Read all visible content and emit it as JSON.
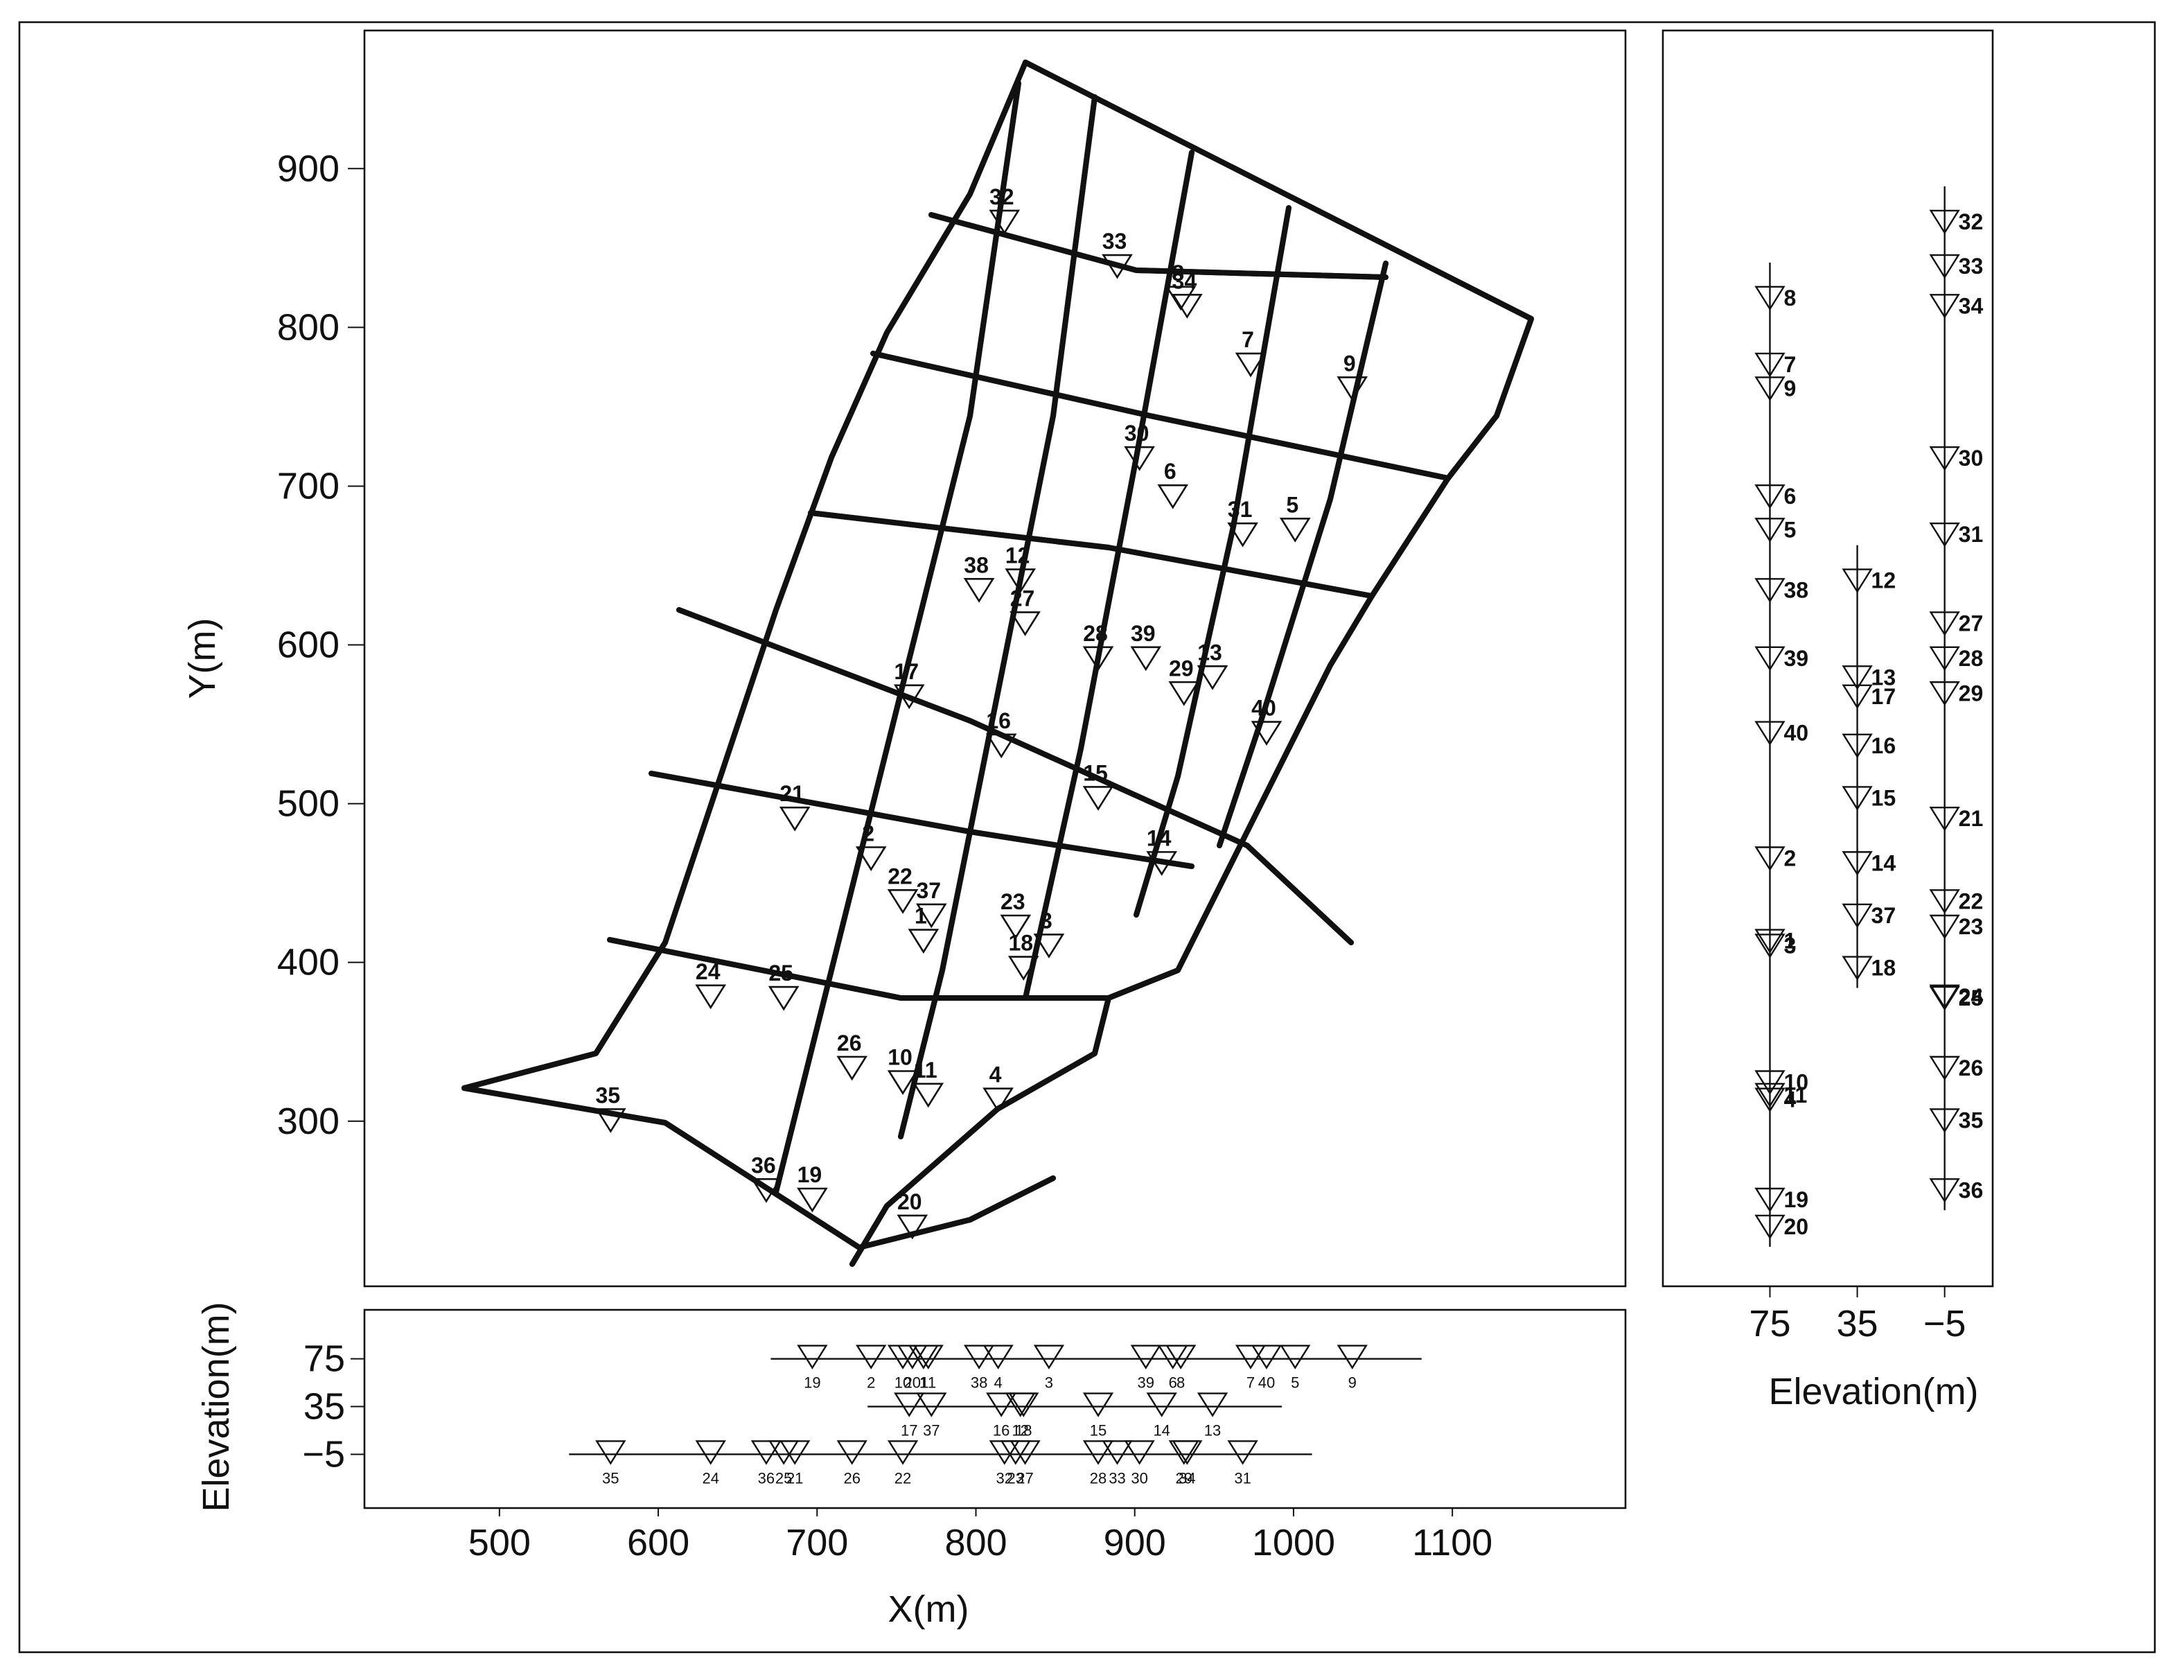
{
  "chart_data": {
    "type": "scatter",
    "xlabel": "X(m)",
    "ylabel": "Y(m)",
    "elevation_label": "Elevation(m)",
    "xlim": [
      415,
      1209
    ],
    "ylim": [
      196,
      987
    ],
    "xticks": [
      500,
      600,
      700,
      800,
      900,
      1000,
      1100
    ],
    "yticks": [
      300,
      400,
      500,
      600,
      700,
      800,
      900
    ],
    "elevation_bottom_lim": [
      -50,
      116
    ],
    "elevation_right_lim": [
      124,
      -27
    ],
    "elevation_ticks": [
      75,
      35,
      {
        "value": -5,
        "label": "−5"
      }
    ],
    "color": "#111111",
    "points": [
      {
        "label": "1",
        "x": 767,
        "y": 414,
        "elevation": 75
      },
      {
        "label": "2",
        "x": 734,
        "y": 466,
        "elevation": 75
      },
      {
        "label": "3",
        "x": 846,
        "y": 411,
        "elevation": 75
      },
      {
        "label": "4",
        "x": 814,
        "y": 314,
        "elevation": 75
      },
      {
        "label": "5",
        "x": 1001,
        "y": 673,
        "elevation": 75
      },
      {
        "label": "6",
        "x": 924,
        "y": 694,
        "elevation": 75
      },
      {
        "label": "7",
        "x": 973,
        "y": 777,
        "elevation": 75
      },
      {
        "label": "8",
        "x": 929,
        "y": 819,
        "elevation": 75
      },
      {
        "label": "9",
        "x": 1037,
        "y": 762,
        "elevation": 75
      },
      {
        "label": "10",
        "x": 754,
        "y": 325,
        "elevation": 75
      },
      {
        "label": "11",
        "x": 770,
        "y": 317,
        "elevation": 75
      },
      {
        "label": "12",
        "x": 828,
        "y": 641,
        "elevation": 35
      },
      {
        "label": "13",
        "x": 949,
        "y": 580,
        "elevation": 35
      },
      {
        "label": "14",
        "x": 917,
        "y": 463,
        "elevation": 35
      },
      {
        "label": "15",
        "x": 877,
        "y": 504,
        "elevation": 35
      },
      {
        "label": "16",
        "x": 816,
        "y": 537,
        "elevation": 35
      },
      {
        "label": "17",
        "x": 758,
        "y": 568,
        "elevation": 35
      },
      {
        "label": "18",
        "x": 830,
        "y": 397,
        "elevation": 35
      },
      {
        "label": "19",
        "x": 697,
        "y": 251,
        "elevation": 75
      },
      {
        "label": "20",
        "x": 760,
        "y": 234,
        "elevation": 75
      },
      {
        "label": "21",
        "x": 686,
        "y": 491,
        "elevation": -5
      },
      {
        "label": "22",
        "x": 754,
        "y": 439,
        "elevation": -5
      },
      {
        "label": "23",
        "x": 825,
        "y": 423,
        "elevation": -5
      },
      {
        "label": "24",
        "x": 633,
        "y": 379,
        "elevation": -5
      },
      {
        "label": "25",
        "x": 679,
        "y": 378,
        "elevation": -5
      },
      {
        "label": "26",
        "x": 722,
        "y": 334,
        "elevation": -5
      },
      {
        "label": "27",
        "x": 831,
        "y": 614,
        "elevation": -5
      },
      {
        "label": "28",
        "x": 877,
        "y": 592,
        "elevation": -5
      },
      {
        "label": "29",
        "x": 931,
        "y": 570,
        "elevation": -5
      },
      {
        "label": "30",
        "x": 903,
        "y": 718,
        "elevation": -5
      },
      {
        "label": "31",
        "x": 968,
        "y": 670,
        "elevation": -5
      },
      {
        "label": "32",
        "x": 818,
        "y": 867,
        "elevation": -5
      },
      {
        "label": "33",
        "x": 889,
        "y": 839,
        "elevation": -5
      },
      {
        "label": "34",
        "x": 933,
        "y": 814,
        "elevation": -5
      },
      {
        "label": "35",
        "x": 570,
        "y": 301,
        "elevation": -5
      },
      {
        "label": "36",
        "x": 668,
        "y": 257,
        "elevation": -5
      },
      {
        "label": "37",
        "x": 772,
        "y": 430,
        "elevation": 35
      },
      {
        "label": "38",
        "x": 802,
        "y": 635,
        "elevation": 75
      },
      {
        "label": "39",
        "x": 907,
        "y": 592,
        "elevation": 75
      },
      {
        "label": "40",
        "x": 983,
        "y": 545,
        "elevation": 75
      }
    ]
  }
}
